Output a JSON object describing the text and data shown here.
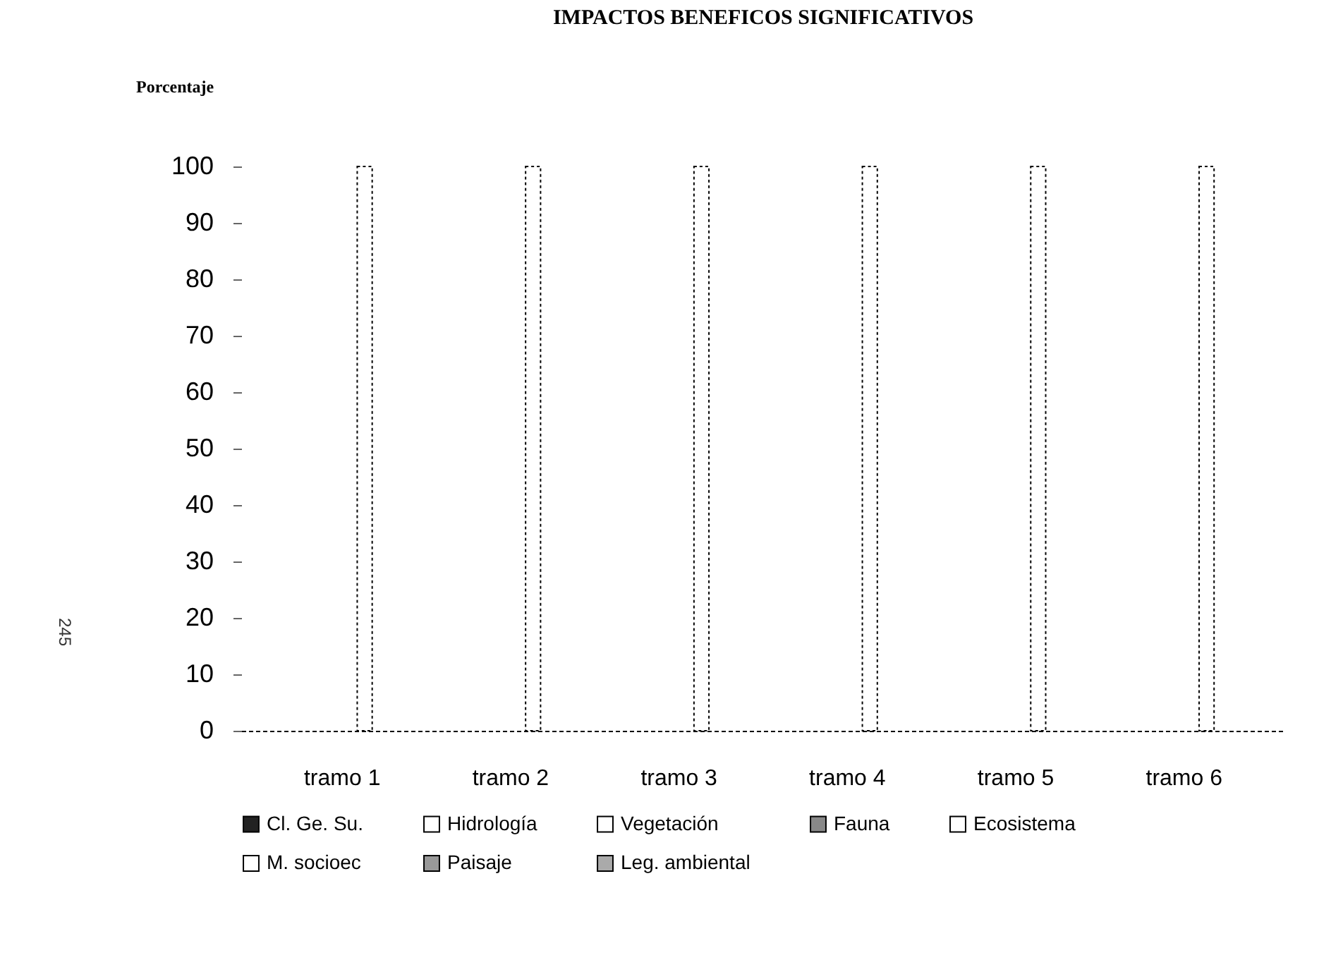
{
  "chart_data": {
    "type": "bar",
    "title": "IMPACTOS BENEFICOS SIGNIFICATIVOS",
    "ylabel": "Porcentaje",
    "categories": [
      "tramo 1",
      "tramo 2",
      "tramo 3",
      "tramo 4",
      "tramo 5",
      "tramo 6"
    ],
    "series": [
      {
        "name": "Cl. Ge. Su.",
        "color": "#222222",
        "values": [
          0,
          0,
          0,
          0,
          0,
          0
        ]
      },
      {
        "name": "Hidrología",
        "color": "#ffffff",
        "values": [
          0,
          0,
          0,
          0,
          0,
          0
        ]
      },
      {
        "name": "Vegetación",
        "color": "#ffffff",
        "values": [
          0,
          0,
          0,
          0,
          0,
          0
        ]
      },
      {
        "name": "Fauna",
        "color": "#888888",
        "values": [
          0,
          0,
          0,
          0,
          0,
          0
        ]
      },
      {
        "name": "Ecosistema",
        "color": "#ffffff",
        "values": [
          0,
          0,
          0,
          0,
          0,
          0
        ]
      },
      {
        "name": "M. socioec",
        "color": "#ffffff",
        "values": [
          100,
          100,
          100,
          100,
          100,
          100
        ]
      },
      {
        "name": "Paisaje",
        "color": "#999999",
        "values": [
          0,
          0,
          0,
          0,
          0,
          0
        ]
      },
      {
        "name": "Leg. ambiental",
        "color": "#aaaaaa",
        "values": [
          0,
          0,
          0,
          0,
          0,
          0
        ]
      }
    ],
    "ylim": [
      0,
      100
    ],
    "yticks": [
      0,
      10,
      20,
      30,
      40,
      50,
      60,
      70,
      80,
      90,
      100
    ],
    "grid": false,
    "legend": "bottom",
    "annotations": [
      "245"
    ]
  }
}
